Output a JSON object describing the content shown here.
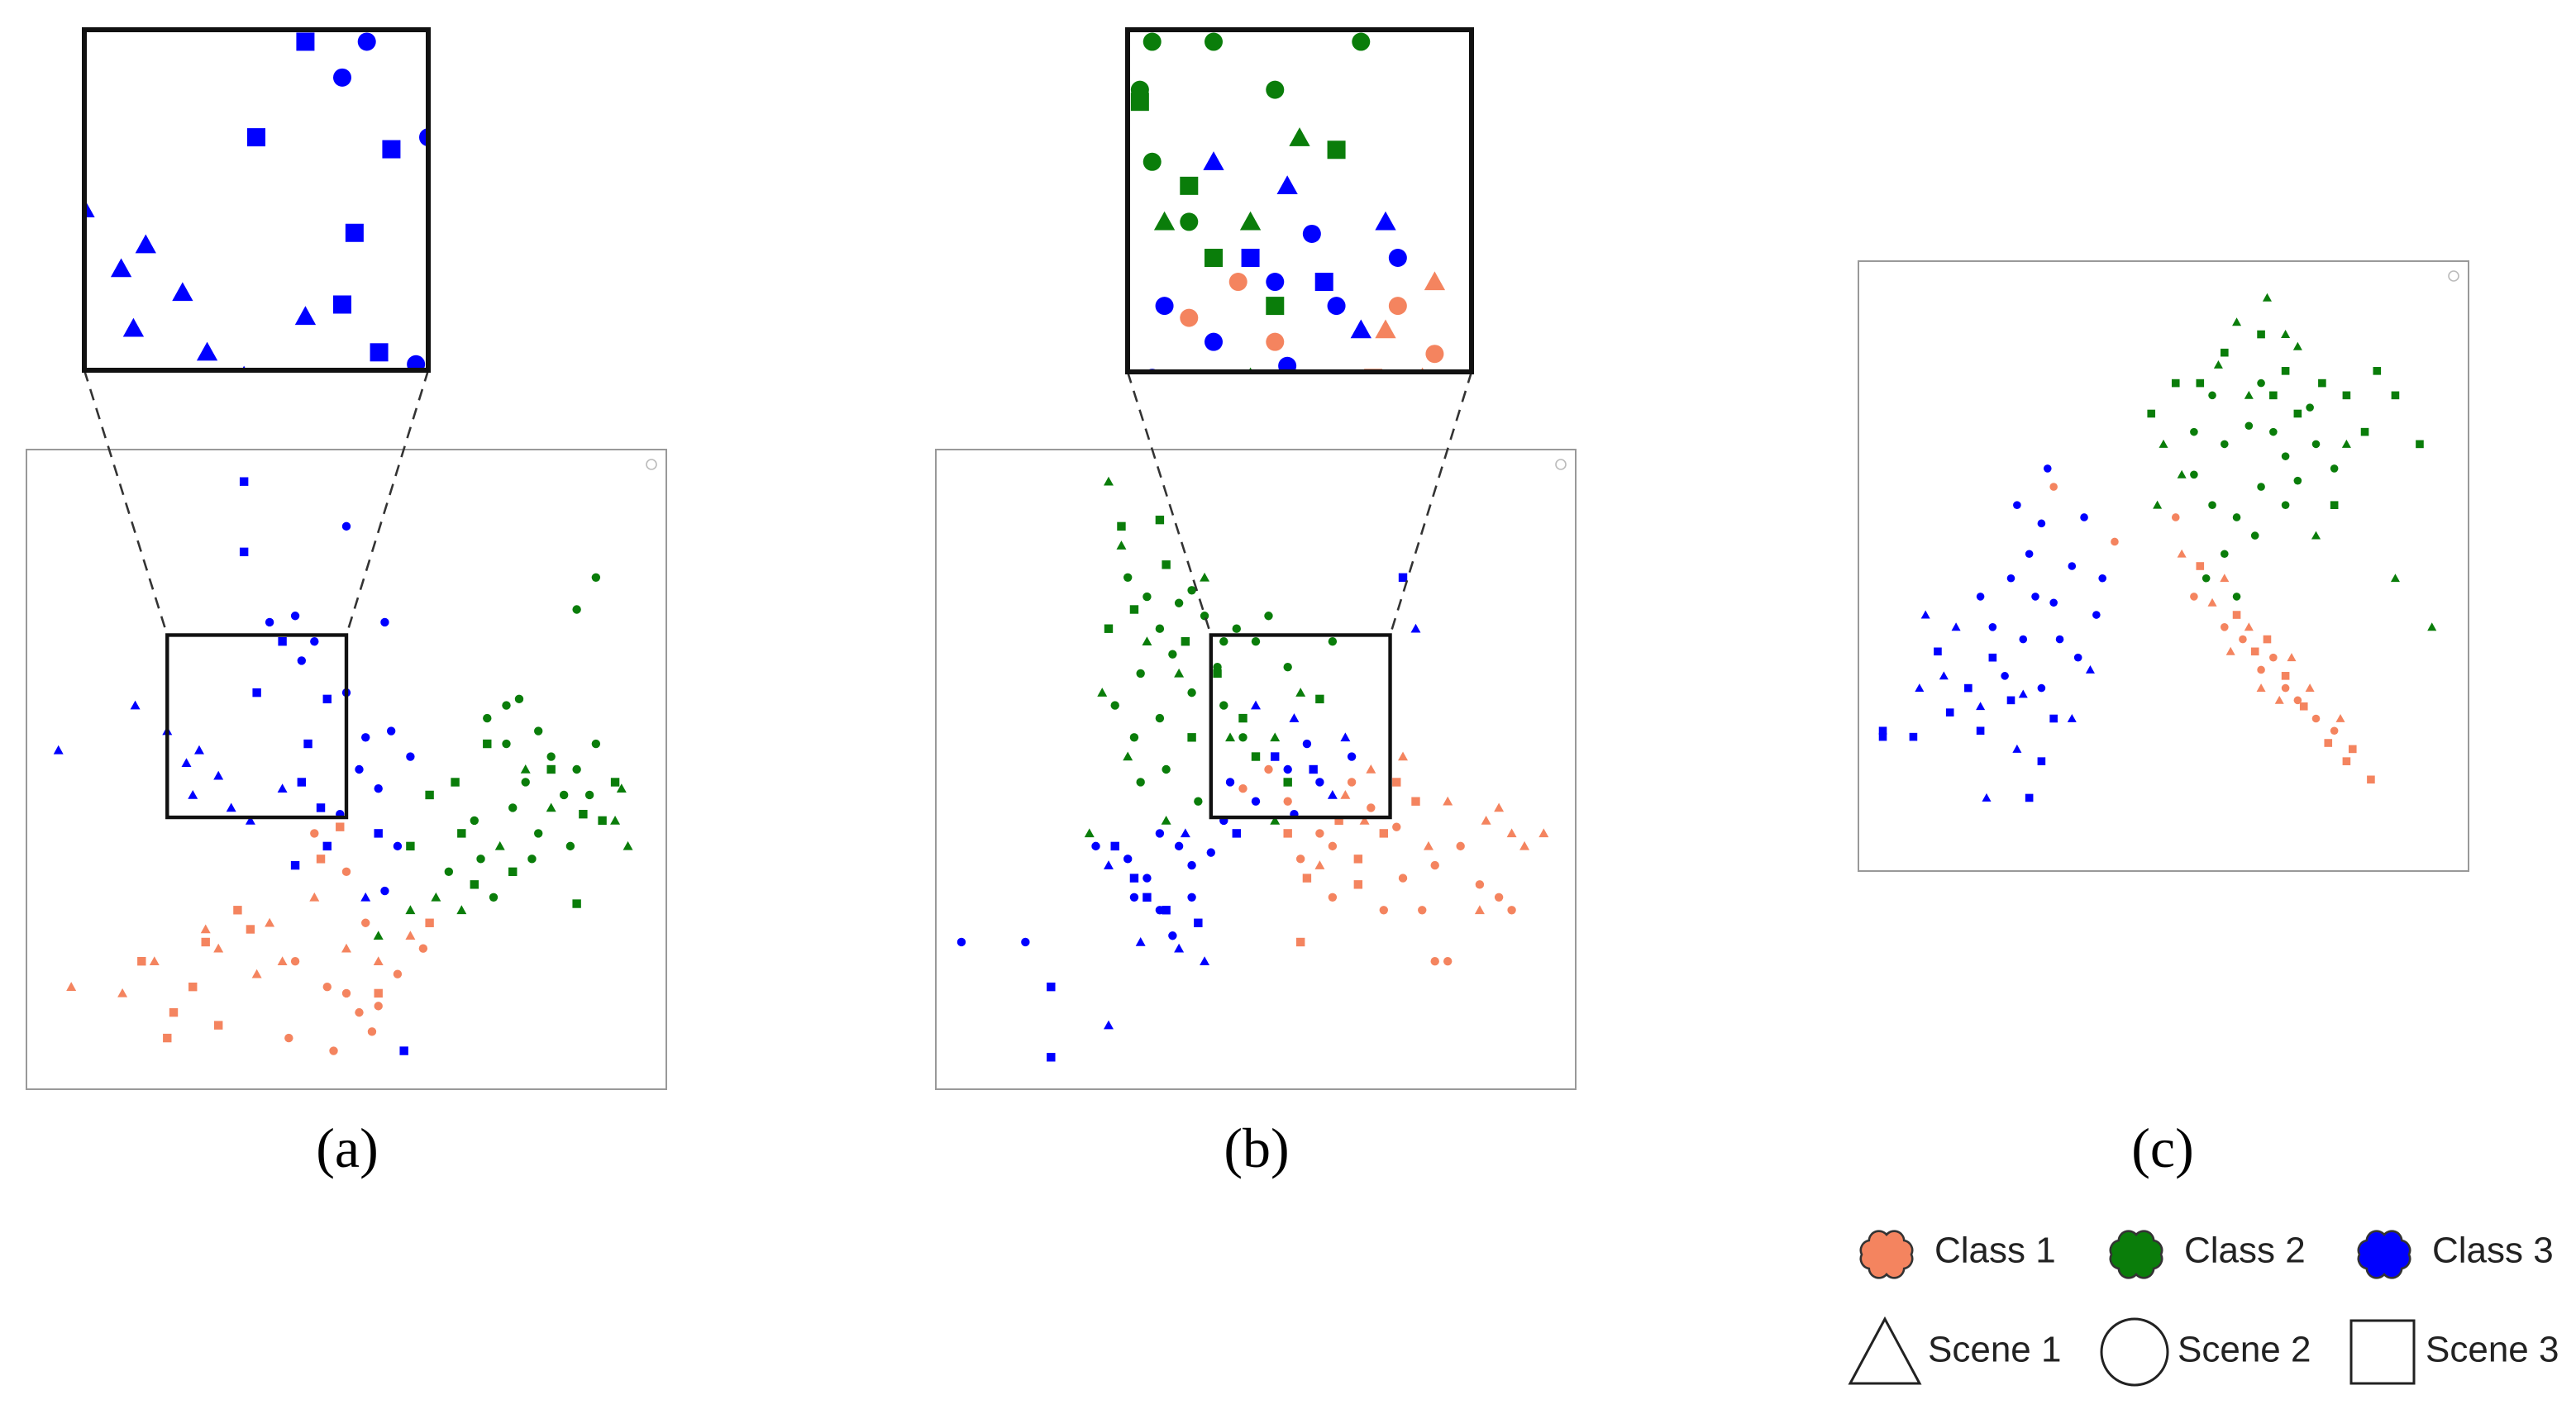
{
  "chart_data": [
    {
      "type": "scatter",
      "caption": "(a)",
      "xlim": [
        0,
        100
      ],
      "ylim": [
        0,
        100
      ],
      "zoom_xlim": [
        22,
        50
      ],
      "zoom_ylim": [
        42.5,
        71
      ],
      "series": [
        {
          "color": "#f4845f",
          "marker": "triangle",
          "x": [
            7,
            15,
            20,
            30,
            36,
            40,
            50,
            45,
            55,
            60,
            28,
            38
          ],
          "values": [
            16,
            15,
            20,
            22,
            18,
            20,
            22,
            30,
            20,
            24,
            25,
            26
          ]
        },
        {
          "color": "#f4845f",
          "marker": "circle",
          "x": [
            42,
            47,
            50,
            52,
            41,
            48,
            54,
            58,
            62,
            50,
            45,
            53,
            55
          ],
          "values": [
            20,
            16,
            15,
            12,
            8,
            6,
            9,
            18,
            22,
            34,
            40,
            26,
            13
          ]
        },
        {
          "color": "#f4845f",
          "marker": "square",
          "x": [
            18,
            26,
            28,
            33,
            35,
            23,
            30,
            22,
            49,
            46,
            55,
            63
          ],
          "values": [
            20,
            16,
            23,
            28,
            25,
            12,
            10,
            8,
            41,
            36,
            15,
            26
          ]
        },
        {
          "color": "#0a7d0a",
          "marker": "triangle",
          "x": [
            93,
            92,
            94,
            82,
            74,
            68,
            64,
            55,
            60,
            78
          ],
          "values": [
            47,
            42,
            38,
            44,
            38,
            28,
            30,
            24,
            28,
            50
          ]
        },
        {
          "color": "#0a7d0a",
          "marker": "circle",
          "x": [
            72,
            75,
            80,
            82,
            78,
            84,
            76,
            70,
            86,
            88,
            89,
            80,
            71,
            66,
            73,
            79,
            85,
            75,
            86,
            89,
            77
          ],
          "values": [
            58,
            54,
            56,
            52,
            48,
            46,
            44,
            42,
            50,
            46,
            54,
            40,
            36,
            34,
            30,
            36,
            38,
            60,
            75,
            80,
            61
          ]
        },
        {
          "color": "#0a7d0a",
          "marker": "square",
          "x": [
            67,
            72,
            82,
            87,
            90,
            70,
            63,
            68,
            76,
            86,
            92,
            60
          ],
          "values": [
            48,
            54,
            50,
            43,
            42,
            32,
            46,
            40,
            34,
            29,
            48,
            38
          ]
        },
        {
          "color": "#0000ff",
          "marker": "triangle",
          "x": [
            5,
            17,
            22,
            27,
            25,
            30,
            35,
            32,
            40,
            26,
            53
          ],
          "values": [
            53,
            60,
            56,
            53,
            51,
            49,
            42,
            44,
            47,
            46,
            30
          ]
        },
        {
          "color": "#0000ff",
          "marker": "circle",
          "x": [
            42,
            38,
            50,
            45,
            56,
            43,
            50,
            53,
            52,
            55,
            49,
            57,
            60,
            58,
            56
          ],
          "values": [
            74,
            73,
            88,
            70,
            73,
            67,
            62,
            55,
            50,
            47,
            43,
            56,
            52,
            38,
            31
          ]
        },
        {
          "color": "#0000ff",
          "marker": "square",
          "x": [
            34,
            34,
            40,
            36,
            47,
            44,
            43,
            46,
            47,
            55,
            59,
            42
          ],
          "values": [
            95,
            84,
            70,
            62,
            61,
            54,
            48,
            44,
            38,
            40,
            6,
            35
          ]
        }
      ]
    },
    {
      "type": "scatter",
      "caption": "(b)",
      "xlim": [
        0,
        100
      ],
      "ylim": [
        0,
        100
      ],
      "zoom_xlim": [
        43,
        71
      ],
      "zoom_ylim": [
        42.5,
        71
      ],
      "series": [
        {
          "color": "#f4845f",
          "marker": "triangle",
          "x": [
            60,
            64,
            68,
            73,
            80,
            86,
            90,
            95,
            85,
            92,
            88,
            67,
            77
          ],
          "values": [
            35,
            46,
            50,
            52,
            45,
            42,
            40,
            40,
            28,
            38,
            44,
            42,
            38
          ]
        },
        {
          "color": "#f4845f",
          "marker": "circle",
          "x": [
            55,
            60,
            62,
            65,
            68,
            72,
            73,
            78,
            82,
            85,
            88,
            90,
            78,
            80,
            76,
            70,
            62,
            57,
            48,
            52
          ],
          "values": [
            45,
            40,
            38,
            48,
            44,
            41,
            33,
            35,
            38,
            32,
            30,
            28,
            20,
            20,
            28,
            28,
            30,
            36,
            47,
            50
          ]
        },
        {
          "color": "#f4845f",
          "marker": "square",
          "x": [
            55,
            58,
            63,
            66,
            70,
            75,
            57,
            66,
            72
          ],
          "values": [
            40,
            33,
            42,
            36,
            40,
            45,
            23,
            32,
            48
          ]
        },
        {
          "color": "#0a7d0a",
          "marker": "triangle",
          "x": [
            27,
            29,
            33,
            26,
            30,
            38,
            42,
            46,
            53,
            24,
            57,
            53,
            36
          ],
          "values": [
            95,
            85,
            70,
            62,
            52,
            65,
            80,
            55,
            55,
            40,
            62,
            42,
            42
          ]
        },
        {
          "color": "#0a7d0a",
          "marker": "circle",
          "x": [
            30,
            33,
            35,
            38,
            40,
            42,
            45,
            37,
            32,
            28,
            31,
            35,
            40,
            44,
            47,
            50,
            52,
            45,
            36,
            32,
            48,
            41,
            55,
            62
          ],
          "values": [
            80,
            77,
            72,
            76,
            78,
            74,
            70,
            68,
            65,
            60,
            55,
            58,
            62,
            66,
            72,
            70,
            74,
            60,
            50,
            48,
            55,
            45,
            66,
            70
          ]
        },
        {
          "color": "#0a7d0a",
          "marker": "square",
          "x": [
            29,
            35,
            36,
            31,
            44,
            48,
            50,
            55,
            40,
            27,
            39,
            60
          ],
          "values": [
            88,
            89,
            82,
            75,
            65,
            58,
            52,
            48,
            55,
            72,
            70,
            61
          ]
        },
        {
          "color": "#0000ff",
          "marker": "triangle",
          "x": [
            27,
            32,
            38,
            42,
            39,
            50,
            56,
            62,
            27,
            75,
            64
          ],
          "values": [
            35,
            23,
            22,
            20,
            40,
            60,
            58,
            46,
            10,
            72,
            55
          ]
        },
        {
          "color": "#0000ff",
          "marker": "circle",
          "x": [
            35,
            30,
            33,
            38,
            40,
            35,
            31,
            37,
            40,
            43,
            45,
            46,
            50,
            55,
            58,
            56,
            60,
            4,
            14,
            25,
            65
          ],
          "values": [
            40,
            36,
            33,
            38,
            30,
            28,
            30,
            24,
            35,
            37,
            42,
            48,
            45,
            50,
            54,
            43,
            48,
            23,
            23,
            38,
            52
          ]
        },
        {
          "color": "#0000ff",
          "marker": "square",
          "x": [
            31,
            33,
            36,
            41,
            47,
            53,
            59,
            18,
            18,
            28,
            73
          ],
          "values": [
            33,
            30,
            28,
            26,
            40,
            52,
            50,
            16,
            5,
            38,
            80
          ]
        }
      ]
    },
    {
      "type": "scatter",
      "caption": "(c)",
      "xlim": [
        0,
        100
      ],
      "ylim": [
        0,
        100
      ],
      "series": [
        {
          "color": "#f4845f",
          "marker": "triangle",
          "x": [
            53,
            58,
            61,
            64,
            69,
            71,
            74,
            79,
            66,
            60
          ],
          "values": [
            52,
            44,
            36,
            40,
            28,
            35,
            30,
            25,
            30,
            48
          ]
        },
        {
          "color": "#f4845f",
          "marker": "circle",
          "x": [
            32,
            42,
            52,
            55,
            60,
            63,
            66,
            70,
            72,
            75,
            78,
            68
          ],
          "values": [
            63,
            54,
            58,
            45,
            40,
            38,
            33,
            30,
            28,
            25,
            23,
            35
          ]
        },
        {
          "color": "#f4845f",
          "marker": "square",
          "x": [
            56,
            62,
            67,
            70,
            73,
            80,
            84,
            77,
            81,
            65
          ],
          "values": [
            50,
            42,
            38,
            32,
            27,
            18,
            15,
            21,
            20,
            36
          ]
        },
        {
          "color": "#0a7d0a",
          "marker": "triangle",
          "x": [
            50,
            53,
            62,
            67,
            70,
            59,
            72,
            80,
            88,
            94,
            64,
            75,
            49
          ],
          "values": [
            70,
            65,
            90,
            94,
            88,
            83,
            86,
            70,
            48,
            40,
            78,
            55,
            60
          ]
        },
        {
          "color": "#0a7d0a",
          "marker": "circle",
          "x": [
            55,
            60,
            64,
            58,
            62,
            66,
            70,
            68,
            72,
            75,
            65,
            60,
            57,
            62,
            70,
            78,
            74,
            66,
            58,
            55
          ],
          "values": [
            65,
            70,
            73,
            60,
            58,
            63,
            68,
            72,
            64,
            70,
            55,
            52,
            48,
            45,
            60,
            66,
            76,
            80,
            78,
            72
          ]
        },
        {
          "color": "#0a7d0a",
          "marker": "square",
          "x": [
            48,
            52,
            60,
            66,
            70,
            76,
            80,
            85,
            88,
            92,
            72,
            83,
            78,
            68,
            56
          ],
          "values": [
            75,
            80,
            85,
            88,
            82,
            80,
            78,
            82,
            78,
            70,
            75,
            72,
            60,
            78,
            80
          ]
        },
        {
          "color": "#0000ff",
          "marker": "triangle",
          "x": [
            10,
            14,
            20,
            26,
            21,
            35,
            16,
            11,
            27,
            38
          ],
          "values": [
            30,
            32,
            27,
            20,
            12,
            25,
            40,
            42,
            29,
            33
          ]
        },
        {
          "color": "#0000ff",
          "marker": "circle",
          "x": [
            20,
            25,
            28,
            22,
            27,
            32,
            35,
            30,
            26,
            33,
            24,
            30,
            36,
            39,
            37,
            31,
            40,
            29
          ],
          "values": [
            45,
            48,
            52,
            40,
            38,
            44,
            50,
            57,
            60,
            38,
            32,
            30,
            35,
            42,
            58,
            66,
            48,
            45
          ]
        },
        {
          "color": "#0000ff",
          "marker": "square",
          "x": [
            4,
            9,
            15,
            20,
            25,
            30,
            32,
            28,
            18,
            22,
            13,
            4
          ],
          "values": [
            22,
            22,
            26,
            23,
            28,
            18,
            25,
            12,
            30,
            35,
            36,
            23
          ]
        }
      ]
    }
  ],
  "legend": {
    "classes": [
      {
        "name": "Class 1",
        "color": "#f4845f"
      },
      {
        "name": "Class 2",
        "color": "#0a7d0a"
      },
      {
        "name": "Class 3",
        "color": "#0000ff"
      }
    ],
    "scenes": [
      {
        "name": "Scene 1",
        "marker": "triangle"
      },
      {
        "name": "Scene 2",
        "marker": "circle"
      },
      {
        "name": "Scene 3",
        "marker": "square"
      }
    ]
  }
}
